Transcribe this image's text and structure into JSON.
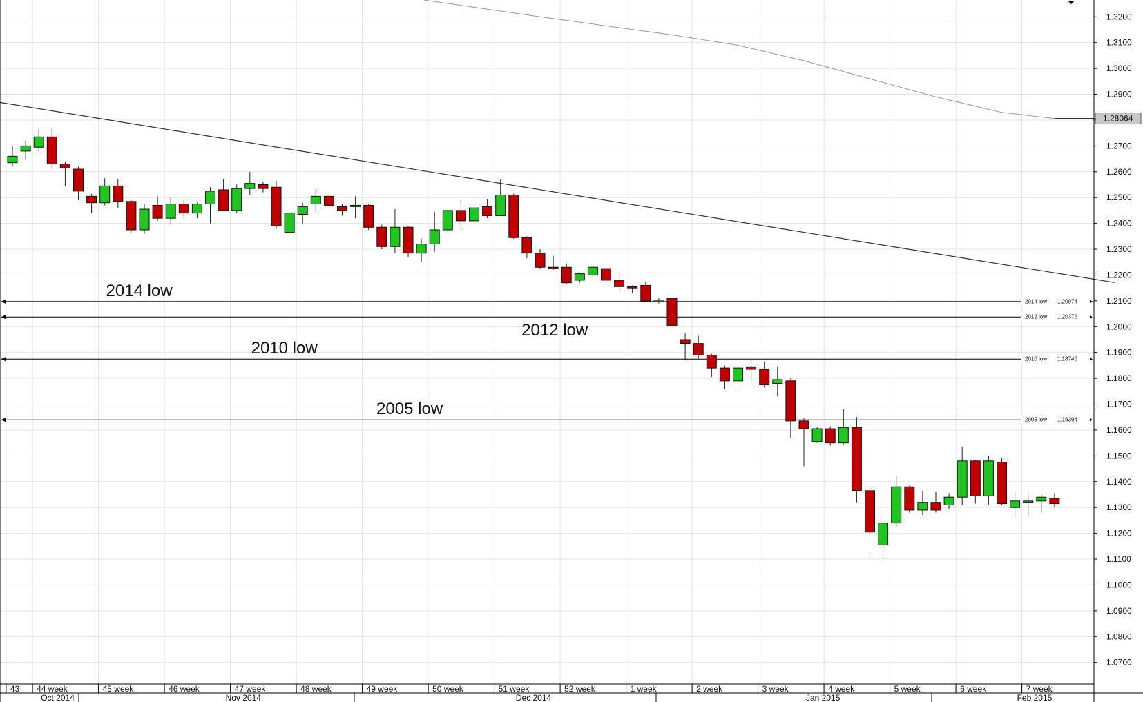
{
  "chart_data": {
    "type": "candlestick",
    "title": "",
    "xlabel": "",
    "ylabel": "",
    "ylim": [
      1.062,
      1.3265
    ],
    "y_ticks": [
      "1.3200",
      "1.3100",
      "1.3000",
      "1.2900",
      "1.2800",
      "1.2700",
      "1.2600",
      "1.2500",
      "1.2400",
      "1.2300",
      "1.2200",
      "1.2100",
      "1.2000",
      "1.1900",
      "1.1800",
      "1.1700",
      "1.1600",
      "1.1500",
      "1.1400",
      "1.1300",
      "1.1200",
      "1.1100",
      "1.1000",
      "1.0900",
      "1.0800",
      "1.0700"
    ],
    "week_labels": [
      {
        "label": "43",
        "index": -0.5
      },
      {
        "label": "44 week",
        "index": 1.5
      },
      {
        "label": "45 week",
        "index": 6.5
      },
      {
        "label": "46 week",
        "index": 11.5
      },
      {
        "label": "47 week",
        "index": 16.5
      },
      {
        "label": "48 week",
        "index": 21.5
      },
      {
        "label": "49 week",
        "index": 26.5
      },
      {
        "label": "50 week",
        "index": 31.5
      },
      {
        "label": "51 week",
        "index": 36.5
      },
      {
        "label": "52 week",
        "index": 41.5
      },
      {
        "label": "1 week",
        "index": 46.5
      },
      {
        "label": "2 week",
        "index": 51.5
      },
      {
        "label": "3 week",
        "index": 56.5
      },
      {
        "label": "4 week",
        "index": 61.5
      },
      {
        "label": "5 week",
        "index": 66.5
      },
      {
        "label": "6 week",
        "index": 71.5
      },
      {
        "label": "7 week",
        "index": 76.5
      }
    ],
    "month_labels": [
      {
        "label": "Oct 2014",
        "index": 2
      },
      {
        "label": "Nov 2014",
        "index": 16
      },
      {
        "label": "Dec 2014",
        "index": 38
      },
      {
        "label": "Jan 2015",
        "index": 60
      },
      {
        "label": "Feb 2015",
        "index": 76
      }
    ],
    "candles": [
      {
        "o": 1.2635,
        "h": 1.27,
        "l": 1.262,
        "c": 1.266
      },
      {
        "o": 1.268,
        "h": 1.272,
        "l": 1.265,
        "c": 1.27
      },
      {
        "o": 1.2695,
        "h": 1.2765,
        "l": 1.268,
        "c": 1.2735
      },
      {
        "o": 1.2735,
        "h": 1.277,
        "l": 1.261,
        "c": 1.263
      },
      {
        "o": 1.263,
        "h": 1.264,
        "l": 1.2545,
        "c": 1.2615
      },
      {
        "o": 1.261,
        "h": 1.262,
        "l": 1.249,
        "c": 1.2525
      },
      {
        "o": 1.2505,
        "h": 1.2515,
        "l": 1.244,
        "c": 1.248
      },
      {
        "o": 1.248,
        "h": 1.2575,
        "l": 1.247,
        "c": 1.2545
      },
      {
        "o": 1.2545,
        "h": 1.257,
        "l": 1.246,
        "c": 1.2485
      },
      {
        "o": 1.2485,
        "h": 1.249,
        "l": 1.2365,
        "c": 1.2375
      },
      {
        "o": 1.2375,
        "h": 1.2475,
        "l": 1.236,
        "c": 1.2455
      },
      {
        "o": 1.247,
        "h": 1.2505,
        "l": 1.241,
        "c": 1.242
      },
      {
        "o": 1.242,
        "h": 1.25,
        "l": 1.2395,
        "c": 1.2475
      },
      {
        "o": 1.2475,
        "h": 1.249,
        "l": 1.242,
        "c": 1.244
      },
      {
        "o": 1.244,
        "h": 1.248,
        "l": 1.242,
        "c": 1.2475
      },
      {
        "o": 1.2475,
        "h": 1.254,
        "l": 1.24,
        "c": 1.2525
      },
      {
        "o": 1.253,
        "h": 1.257,
        "l": 1.245,
        "c": 1.245
      },
      {
        "o": 1.245,
        "h": 1.255,
        "l": 1.244,
        "c": 1.2535
      },
      {
        "o": 1.2535,
        "h": 1.26,
        "l": 1.251,
        "c": 1.2555
      },
      {
        "o": 1.255,
        "h": 1.256,
        "l": 1.252,
        "c": 1.2535
      },
      {
        "o": 1.254,
        "h": 1.2565,
        "l": 1.238,
        "c": 1.239
      },
      {
        "o": 1.2365,
        "h": 1.244,
        "l": 1.2365,
        "c": 1.244
      },
      {
        "o": 1.2435,
        "h": 1.248,
        "l": 1.24,
        "c": 1.2465
      },
      {
        "o": 1.2475,
        "h": 1.253,
        "l": 1.245,
        "c": 1.2505
      },
      {
        "o": 1.2505,
        "h": 1.2515,
        "l": 1.247,
        "c": 1.247
      },
      {
        "o": 1.2465,
        "h": 1.2475,
        "l": 1.243,
        "c": 1.245
      },
      {
        "o": 1.2465,
        "h": 1.2505,
        "l": 1.242,
        "c": 1.247
      },
      {
        "o": 1.247,
        "h": 1.2475,
        "l": 1.2375,
        "c": 1.2385
      },
      {
        "o": 1.2385,
        "h": 1.2395,
        "l": 1.23,
        "c": 1.231
      },
      {
        "o": 1.231,
        "h": 1.2455,
        "l": 1.2285,
        "c": 1.2385
      },
      {
        "o": 1.2385,
        "h": 1.239,
        "l": 1.227,
        "c": 1.2285
      },
      {
        "o": 1.2285,
        "h": 1.234,
        "l": 1.225,
        "c": 1.232
      },
      {
        "o": 1.232,
        "h": 1.2445,
        "l": 1.229,
        "c": 1.2375
      },
      {
        "o": 1.2375,
        "h": 1.245,
        "l": 1.2365,
        "c": 1.245
      },
      {
        "o": 1.245,
        "h": 1.249,
        "l": 1.2375,
        "c": 1.241
      },
      {
        "o": 1.241,
        "h": 1.2495,
        "l": 1.239,
        "c": 1.246
      },
      {
        "o": 1.2465,
        "h": 1.2495,
        "l": 1.242,
        "c": 1.243
      },
      {
        "o": 1.243,
        "h": 1.257,
        "l": 1.243,
        "c": 1.251
      },
      {
        "o": 1.251,
        "h": 1.2515,
        "l": 1.234,
        "c": 1.2345
      },
      {
        "o": 1.2345,
        "h": 1.235,
        "l": 1.2265,
        "c": 1.2285
      },
      {
        "o": 1.2285,
        "h": 1.23,
        "l": 1.2225,
        "c": 1.223
      },
      {
        "o": 1.223,
        "h": 1.2275,
        "l": 1.222,
        "c": 1.2225
      },
      {
        "o": 1.223,
        "h": 1.2245,
        "l": 1.2165,
        "c": 1.217
      },
      {
        "o": 1.218,
        "h": 1.221,
        "l": 1.217,
        "c": 1.2205
      },
      {
        "o": 1.22,
        "h": 1.2235,
        "l": 1.219,
        "c": 1.223
      },
      {
        "o": 1.2225,
        "h": 1.223,
        "l": 1.2175,
        "c": 1.218
      },
      {
        "o": 1.218,
        "h": 1.2215,
        "l": 1.214,
        "c": 1.2155
      },
      {
        "o": 1.2155,
        "h": 1.216,
        "l": 1.213,
        "c": 1.215
      },
      {
        "o": 1.216,
        "h": 1.2175,
        "l": 1.21,
        "c": 1.21
      },
      {
        "o": 1.21,
        "h": 1.211,
        "l": 1.209,
        "c": 1.21
      },
      {
        "o": 1.211,
        "h": 1.211,
        "l": 1.2005,
        "c": 1.2005
      },
      {
        "o": 1.195,
        "h": 1.1975,
        "l": 1.187,
        "c": 1.1935
      },
      {
        "o": 1.1935,
        "h": 1.1965,
        "l": 1.1875,
        "c": 1.189
      },
      {
        "o": 1.189,
        "h": 1.1895,
        "l": 1.1805,
        "c": 1.184
      },
      {
        "o": 1.184,
        "h": 1.185,
        "l": 1.176,
        "c": 1.179
      },
      {
        "o": 1.179,
        "h": 1.185,
        "l": 1.1765,
        "c": 1.184
      },
      {
        "o": 1.1845,
        "h": 1.187,
        "l": 1.1785,
        "c": 1.1835
      },
      {
        "o": 1.1835,
        "h": 1.1865,
        "l": 1.1765,
        "c": 1.1775
      },
      {
        "o": 1.178,
        "h": 1.1845,
        "l": 1.173,
        "c": 1.1795
      },
      {
        "o": 1.179,
        "h": 1.18,
        "l": 1.157,
        "c": 1.1635
      },
      {
        "o": 1.1635,
        "h": 1.1645,
        "l": 1.146,
        "c": 1.1605
      },
      {
        "o": 1.1555,
        "h": 1.161,
        "l": 1.155,
        "c": 1.1605
      },
      {
        "o": 1.1605,
        "h": 1.1615,
        "l": 1.154,
        "c": 1.155
      },
      {
        "o": 1.155,
        "h": 1.168,
        "l": 1.1545,
        "c": 1.161
      },
      {
        "o": 1.161,
        "h": 1.165,
        "l": 1.132,
        "c": 1.1365
      },
      {
        "o": 1.1365,
        "h": 1.1375,
        "l": 1.1115,
        "c": 1.1205
      },
      {
        "o": 1.1155,
        "h": 1.1245,
        "l": 1.11,
        "c": 1.124
      },
      {
        "o": 1.124,
        "h": 1.1425,
        "l": 1.1225,
        "c": 1.138
      },
      {
        "o": 1.138,
        "h": 1.1385,
        "l": 1.128,
        "c": 1.129
      },
      {
        "o": 1.129,
        "h": 1.1365,
        "l": 1.127,
        "c": 1.132
      },
      {
        "o": 1.132,
        "h": 1.136,
        "l": 1.128,
        "c": 1.129
      },
      {
        "o": 1.131,
        "h": 1.1355,
        "l": 1.1295,
        "c": 1.134
      },
      {
        "o": 1.134,
        "h": 1.1535,
        "l": 1.131,
        "c": 1.148
      },
      {
        "o": 1.148,
        "h": 1.1485,
        "l": 1.1315,
        "c": 1.1345
      },
      {
        "o": 1.1345,
        "h": 1.15,
        "l": 1.131,
        "c": 1.148
      },
      {
        "o": 1.1475,
        "h": 1.149,
        "l": 1.131,
        "c": 1.1315
      },
      {
        "o": 1.13,
        "h": 1.136,
        "l": 1.127,
        "c": 1.1325
      },
      {
        "o": 1.132,
        "h": 1.135,
        "l": 1.127,
        "c": 1.1325
      },
      {
        "o": 1.1325,
        "h": 1.135,
        "l": 1.128,
        "c": 1.134
      },
      {
        "o": 1.1335,
        "h": 1.1355,
        "l": 1.13,
        "c": 1.1315
      }
    ],
    "trendline": {
      "start": {
        "index": -5,
        "value": 1.2902
      },
      "end": {
        "index": 83.55,
        "value": 1.2171
      }
    },
    "moving_average": [
      {
        "index": 31.2,
        "value": 1.3265
      },
      {
        "index": 40,
        "value": 1.32
      },
      {
        "index": 50,
        "value": 1.313
      },
      {
        "index": 55,
        "value": 1.309
      },
      {
        "index": 60,
        "value": 1.303
      },
      {
        "index": 65,
        "value": 1.296
      },
      {
        "index": 70,
        "value": 1.289
      },
      {
        "index": 75,
        "value": 1.283
      },
      {
        "index": 79,
        "value": 1.2806
      },
      {
        "index": 83.55,
        "value": 1.2806
      }
    ],
    "current_price": "1.28064",
    "support_levels": [
      {
        "name": "2014 low",
        "value": 1.20974,
        "value_label": "1.20974",
        "big_label": "2014 low",
        "label_side": "above",
        "big_label_index": 5
      },
      {
        "name": "2012 low",
        "value": 1.20376,
        "value_label": "1.20376",
        "big_label": "2012 low",
        "label_side": "below",
        "big_label_index": 36.5
      },
      {
        "name": "2010 low",
        "value": 1.18746,
        "value_label": "1.18746",
        "big_label": "2010 low",
        "label_side": "above",
        "big_label_index": 16
      },
      {
        "name": "2005 low",
        "value": 1.16394,
        "value_label": "1.16394",
        "big_label": "2005 low",
        "label_side": "above",
        "big_label_index": 25.5
      }
    ],
    "colors": {
      "up": "#1fc61f",
      "down": "#c00000",
      "grid": "#e4e4e4",
      "trendline": "#333333",
      "moving_average": "#999999",
      "price_box": "#c8c8c8"
    },
    "grid": true
  }
}
